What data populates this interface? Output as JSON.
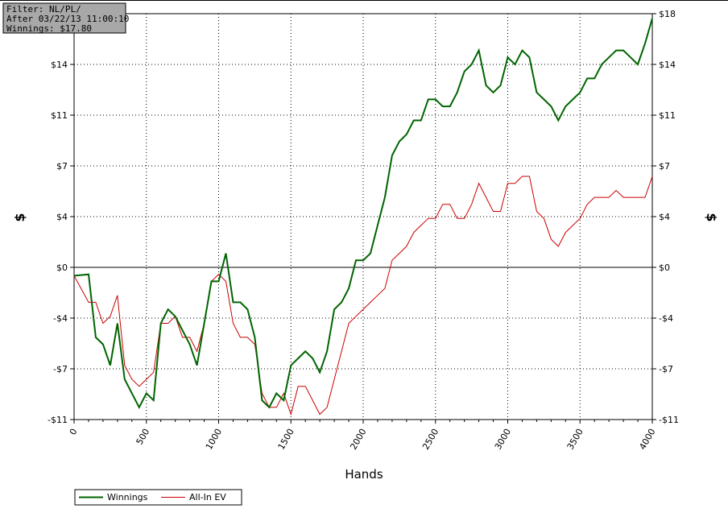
{
  "filter": [
    "Filter: NL/PL/",
    "After 03/22/13 11:00:10",
    "Winnings: $17.80"
  ],
  "chart_data": {
    "type": "line",
    "xlabel": "Hands",
    "ylabel": "$",
    "x": [
      0,
      100,
      150,
      200,
      250,
      300,
      350,
      400,
      450,
      500,
      550,
      600,
      650,
      700,
      750,
      800,
      850,
      900,
      950,
      1000,
      1050,
      1100,
      1150,
      1200,
      1250,
      1300,
      1350,
      1400,
      1450,
      1500,
      1550,
      1600,
      1650,
      1700,
      1750,
      1800,
      1850,
      1900,
      1950,
      2000,
      2050,
      2100,
      2150,
      2200,
      2250,
      2300,
      2350,
      2400,
      2450,
      2500,
      2550,
      2600,
      2650,
      2700,
      2750,
      2800,
      2850,
      2900,
      2950,
      3000,
      3050,
      3100,
      3150,
      3200,
      3250,
      3300,
      3350,
      3400,
      3450,
      3500,
      3550,
      3600,
      3650,
      3700,
      3750,
      3800,
      3850,
      3900,
      3950,
      4000
    ],
    "series": [
      {
        "name": "Winnings",
        "color": "#006400",
        "values": [
          -0.6,
          -0.5,
          -5,
          -5.5,
          -7,
          -4,
          -8,
          -9,
          -10,
          -9,
          -9.5,
          -4,
          -3,
          -3.5,
          -4.5,
          -5.5,
          -7,
          -4,
          -1,
          -1,
          1,
          -2.5,
          -2.5,
          -3,
          -5,
          -9.5,
          -10,
          -9,
          -9.5,
          -7,
          -6.5,
          -6,
          -6.5,
          -7.5,
          -6,
          -3,
          -2.5,
          -1.5,
          0.5,
          0.5,
          1,
          3,
          5,
          8,
          9,
          9.5,
          10.5,
          10.5,
          12,
          12,
          11.5,
          11.5,
          12.5,
          14,
          14.5,
          15.5,
          13,
          12.5,
          13,
          15,
          14.5,
          15.5,
          15,
          12.5,
          12,
          11.5,
          10.5,
          11.5,
          12,
          12.5,
          13.5,
          13.5,
          14.5,
          15,
          15.5,
          15.5,
          15,
          14.5,
          16,
          17.8
        ]
      },
      {
        "name": "All-In EV",
        "color": "#cc0000",
        "values": [
          -0.6,
          -2.5,
          -2.5,
          -4,
          -3.5,
          -2,
          -7,
          -8,
          -8.5,
          -8,
          -7.5,
          -4,
          -4,
          -3.5,
          -5,
          -5,
          -6,
          -4,
          -1,
          -0.5,
          -1,
          -4,
          -5,
          -5,
          -5.5,
          -9,
          -10,
          -10,
          -9,
          -10.5,
          -8.5,
          -8.5,
          -9.5,
          -10.5,
          -10,
          -8,
          -6,
          -4,
          -3.5,
          -3,
          -2.5,
          -2,
          -1.5,
          0.5,
          1,
          1.5,
          2.5,
          3,
          3.5,
          3.5,
          4.5,
          4.5,
          3.5,
          3.5,
          4.5,
          6,
          5,
          4,
          4,
          6,
          6,
          6.5,
          6.5,
          4,
          3.5,
          2,
          1.5,
          2.5,
          3,
          3.5,
          4.5,
          5,
          5,
          5,
          5.5,
          5,
          5,
          5,
          5,
          6.5
        ]
      }
    ],
    "xlim": [
      0,
      4000
    ],
    "xticks": [
      0,
      500,
      1000,
      1500,
      2000,
      2500,
      3000,
      3500,
      4000
    ],
    "ylim": [
      -10.875,
      18.125
    ],
    "yticks": [
      {
        "value": -10.875,
        "label": "-$11"
      },
      {
        "value": -7.25,
        "label": "-$7"
      },
      {
        "value": -3.625,
        "label": "-$4"
      },
      {
        "value": 0,
        "label": "$0"
      },
      {
        "value": 3.625,
        "label": "$4"
      },
      {
        "value": 7.25,
        "label": "$7"
      },
      {
        "value": 10.875,
        "label": "$11"
      },
      {
        "value": 14.5,
        "label": "$14"
      },
      {
        "value": 18.125,
        "label": "$18"
      }
    ],
    "grid": true
  }
}
